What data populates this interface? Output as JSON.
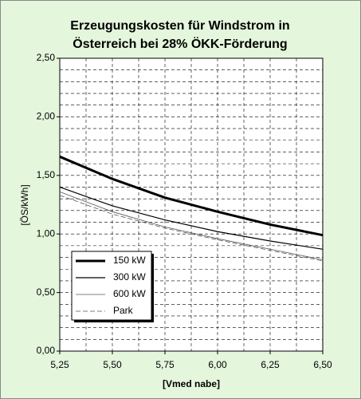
{
  "chart_data": {
    "type": "line",
    "title": [
      "Erzeugungskosten für Windstrom in",
      "Österreich bei 28% ÖKK-Förderung"
    ],
    "x_label": "[Vmed nabe]",
    "y_label": "[ÖS/kWh]",
    "x": [
      5.25,
      5.5,
      5.75,
      6.0,
      6.25,
      6.5
    ],
    "series": [
      {
        "name": "150 kW",
        "color": "#000000",
        "width": 3,
        "dash": false,
        "values": [
          1.66,
          1.47,
          1.31,
          1.19,
          1.08,
          0.99
        ]
      },
      {
        "name": "300 kW",
        "color": "#000000",
        "width": 1.2,
        "dash": false,
        "values": [
          1.4,
          1.24,
          1.12,
          1.02,
          0.94,
          0.87
        ]
      },
      {
        "name": "600 kW",
        "color": "#555555",
        "width": 0.8,
        "dash": false,
        "values": [
          1.36,
          1.19,
          1.06,
          0.96,
          0.87,
          0.78
        ]
      },
      {
        "name": "Park",
        "color": "#555555",
        "width": 0.8,
        "dash": true,
        "values": [
          1.33,
          1.17,
          1.05,
          0.95,
          0.86,
          0.77
        ]
      }
    ],
    "xlim": [
      5.25,
      6.5
    ],
    "ylim": [
      0,
      2.5
    ],
    "xticks": [
      {
        "value": 5.25,
        "label": "5,25"
      },
      {
        "value": 5.5,
        "label": "5,50"
      },
      {
        "value": 5.75,
        "label": "5,75"
      },
      {
        "value": 6.0,
        "label": "6,00"
      },
      {
        "value": 6.25,
        "label": "6,25"
      },
      {
        "value": 6.5,
        "label": "6,50"
      }
    ],
    "yticks": [
      {
        "value": 0,
        "label": "0,00"
      },
      {
        "value": 0.5,
        "label": "0,50"
      },
      {
        "value": 1.0,
        "label": "1,00"
      },
      {
        "value": 1.5,
        "label": "1,50"
      },
      {
        "value": 2.0,
        "label": "2,00"
      },
      {
        "value": 2.5,
        "label": "2,50"
      }
    ],
    "xgrid": [
      5.375,
      5.5,
      5.625,
      5.75,
      5.875,
      6.0,
      6.125,
      6.25,
      6.375
    ],
    "ygrid": [
      0.1,
      0.2,
      0.3,
      0.4,
      0.5,
      0.6,
      0.7,
      0.8,
      0.9,
      1.0,
      1.1,
      1.2,
      1.3,
      1.4,
      1.5,
      1.6,
      1.7,
      1.8,
      1.9,
      2.0,
      2.1,
      2.2,
      2.3,
      2.4
    ],
    "grid": true,
    "legend": "lower-left"
  }
}
